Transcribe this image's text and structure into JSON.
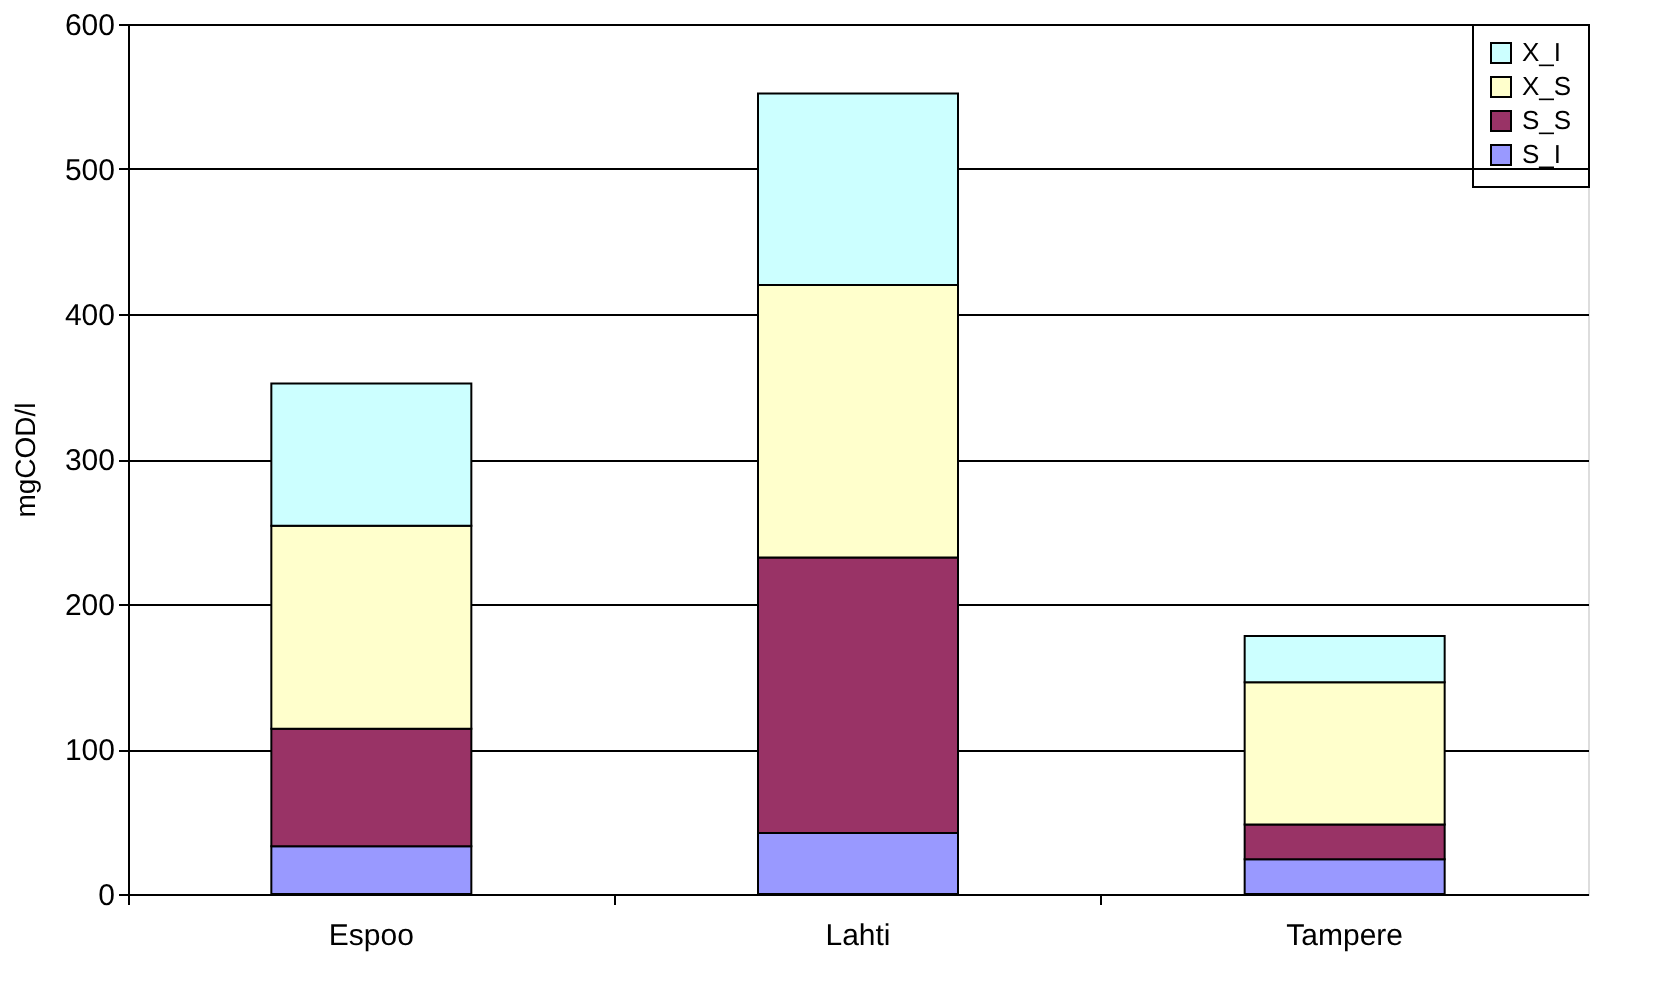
{
  "chart_data": {
    "type": "bar",
    "stacked": true,
    "ylabel": "mgCOD/l",
    "categories": [
      "Espoo",
      "Lahti",
      "Tampere"
    ],
    "series": [
      {
        "name": "S_I",
        "color": "#9999ff",
        "values": [
          33,
          42,
          24
        ]
      },
      {
        "name": "S_S",
        "color": "#993366",
        "values": [
          81,
          190,
          24
        ]
      },
      {
        "name": "X_S",
        "color": "#ffffcc",
        "values": [
          140,
          188,
          98
        ]
      },
      {
        "name": "X_I",
        "color": "#ccffff",
        "values": [
          98,
          132,
          32
        ]
      }
    ],
    "ylim": [
      0,
      600
    ],
    "yticks": [
      0,
      100,
      200,
      300,
      400,
      500,
      600
    ],
    "grid": "y",
    "legend": "top right"
  }
}
